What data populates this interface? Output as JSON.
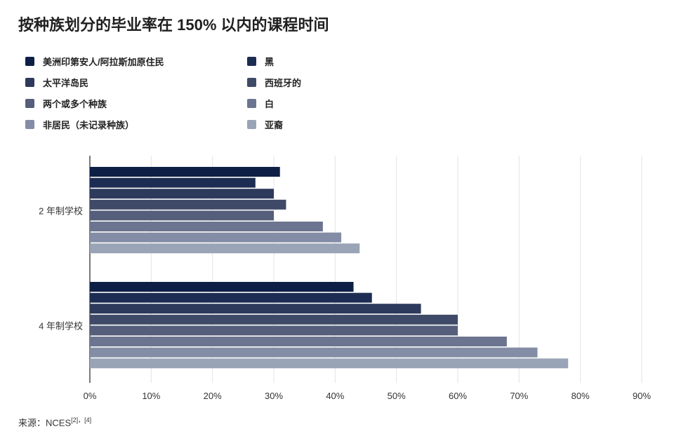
{
  "title": "按种族划分的毕业率在 150% 以内的课程时间",
  "source": {
    "label": "来源：NCES",
    "refs": "[2]，[4]"
  },
  "chart_data": {
    "type": "bar",
    "orientation": "horizontal",
    "categories": [
      "2 年制学校",
      "4 年制学校"
    ],
    "series": [
      {
        "name": "美洲印第安人/阿拉斯加原住民",
        "color": "#0e1f45",
        "values": [
          31,
          43
        ]
      },
      {
        "name": "黑",
        "color": "#1d2c52",
        "values": [
          27,
          46
        ]
      },
      {
        "name": "太平洋岛民",
        "color": "#2e3a5c",
        "values": [
          30,
          54
        ]
      },
      {
        "name": "西班牙的",
        "color": "#3f4a68",
        "values": [
          32,
          60
        ]
      },
      {
        "name": "两个或多个种族",
        "color": "#555f7b",
        "values": [
          30,
          60
        ]
      },
      {
        "name": "白",
        "color": "#6b7590",
        "values": [
          38,
          68
        ]
      },
      {
        "name": "非居民（未记录种族）",
        "color": "#838da5",
        "values": [
          41,
          73
        ]
      },
      {
        "name": "亚裔",
        "color": "#9aa4b7",
        "values": [
          44,
          78
        ]
      }
    ],
    "xlim": [
      0,
      90
    ],
    "xticks": [
      "0%",
      "10%",
      "20%",
      "30%",
      "40%",
      "50%",
      "60%",
      "70%",
      "80%",
      "90%"
    ],
    "grid": true,
    "legend_position": "top"
  }
}
